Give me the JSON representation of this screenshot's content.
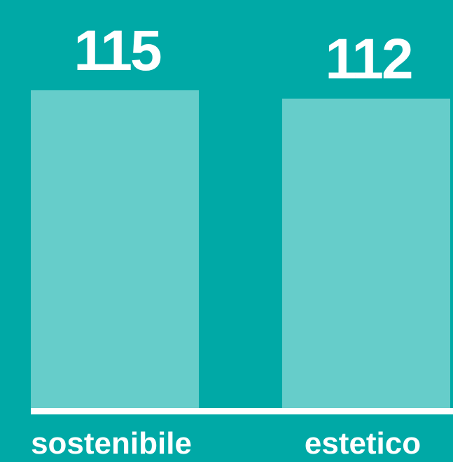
{
  "chart_data": {
    "type": "bar",
    "categories": [
      "sostenibile",
      "estetico"
    ],
    "values": [
      115,
      112
    ],
    "value_labels": [
      "115",
      "112"
    ],
    "title": "",
    "xlabel": "",
    "ylabel": "",
    "ylim": [
      0,
      115
    ],
    "grid": false,
    "legend": "none"
  },
  "colors": {
    "background": "#00a9a6",
    "bar": "#66cdca",
    "baseline": "#ffffff",
    "text": "#ffffff"
  }
}
